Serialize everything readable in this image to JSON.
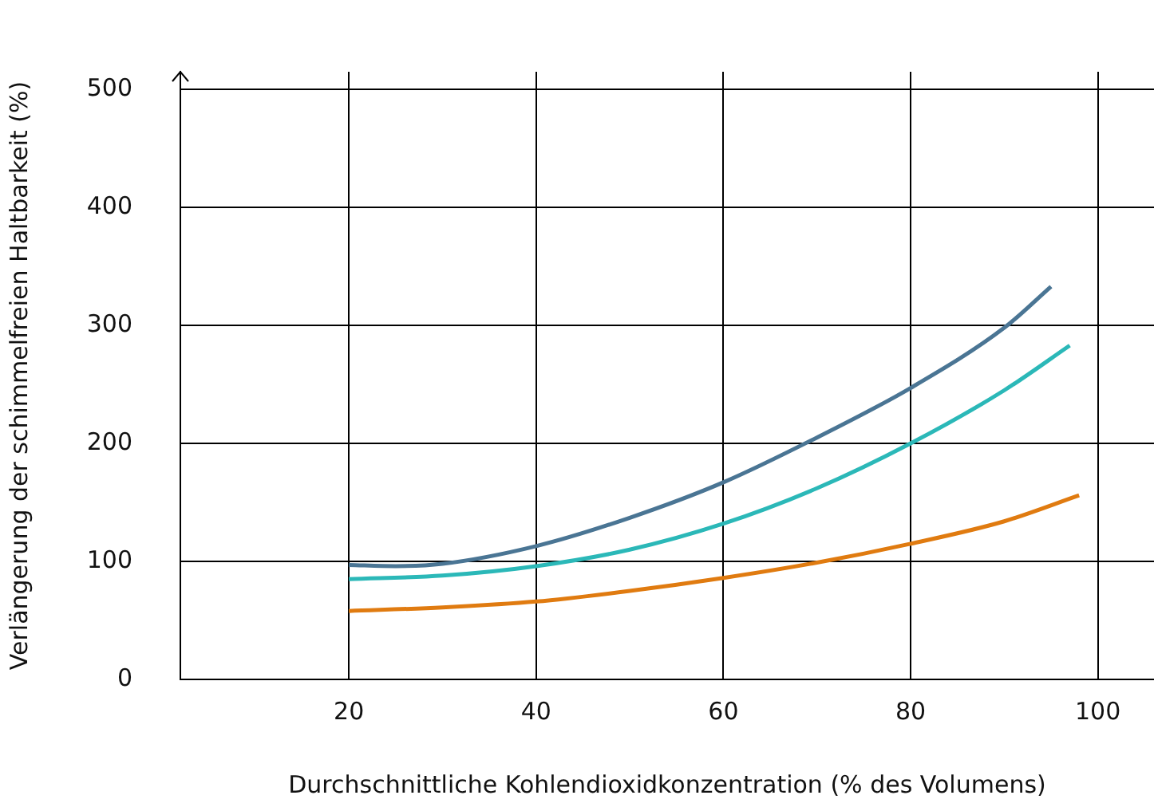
{
  "chart_data": {
    "type": "line",
    "xlabel": "Durchschnittliche Kohlendioxidkonzentration (% des Volumens)",
    "ylabel": "Verlängerung der schimmelfreien Haltbarkeit (%)",
    "xlim": [
      2,
      106
    ],
    "xticks": [
      20,
      40,
      60,
      80,
      100
    ],
    "ylim": [
      0,
      515
    ],
    "yticks": [
      0,
      100,
      200,
      300,
      400,
      500
    ],
    "grid": true,
    "legend": false,
    "marker": "none",
    "line_style": "solid",
    "series": [
      {
        "color": "#4a7594",
        "x": [
          20,
          25,
          30,
          40,
          50,
          60,
          70,
          80,
          90,
          95
        ],
        "values": [
          97,
          96,
          98,
          113,
          137,
          167,
          205,
          247,
          298,
          333
        ]
      },
      {
        "color": "#2bb8b8",
        "x": [
          20,
          30,
          40,
          50,
          60,
          70,
          80,
          90,
          97
        ],
        "values": [
          85,
          88,
          96,
          110,
          132,
          162,
          200,
          245,
          283
        ]
      },
      {
        "color": "#e07b10",
        "x": [
          20,
          30,
          40,
          50,
          60,
          70,
          80,
          90,
          98
        ],
        "values": [
          58,
          61,
          66,
          75,
          86,
          99,
          115,
          134,
          156
        ]
      }
    ]
  }
}
